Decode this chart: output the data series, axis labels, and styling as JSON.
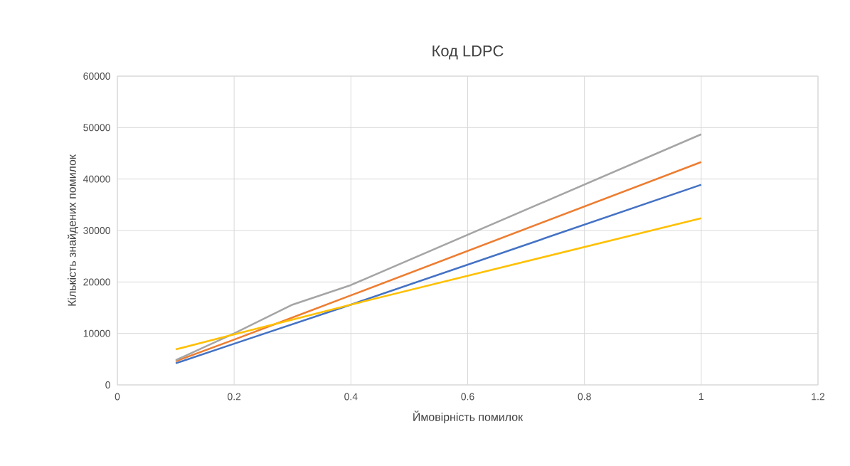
{
  "chart_data": {
    "type": "line",
    "title": "Код LDPC",
    "xlabel": "Ймовірність помилок",
    "ylabel": "Кількість знайдених помилок",
    "x": [
      0.1,
      0.2,
      0.3,
      0.4,
      1
    ],
    "series": [
      {
        "color": "#4472c4",
        "values": [
          4200,
          8000,
          11800,
          15600,
          38900
        ]
      },
      {
        "color": "#ed7d31",
        "values": [
          4600,
          8800,
          13100,
          17400,
          43300
        ]
      },
      {
        "color": "#a5a5a5",
        "values": [
          4800,
          10000,
          15600,
          19400,
          48700
        ]
      },
      {
        "color": "#ffc000",
        "values": [
          6900,
          9800,
          12700,
          15600,
          32400
        ]
      }
    ],
    "xlim": [
      0,
      1.2
    ],
    "xticks": [
      0,
      0.2,
      0.4,
      0.6,
      0.8,
      1,
      1.2
    ],
    "ylim": [
      0,
      60000
    ],
    "yticks": [
      0,
      10000,
      20000,
      30000,
      40000,
      50000,
      60000
    ],
    "grid": true,
    "marker": "none",
    "line_style": "solid"
  }
}
